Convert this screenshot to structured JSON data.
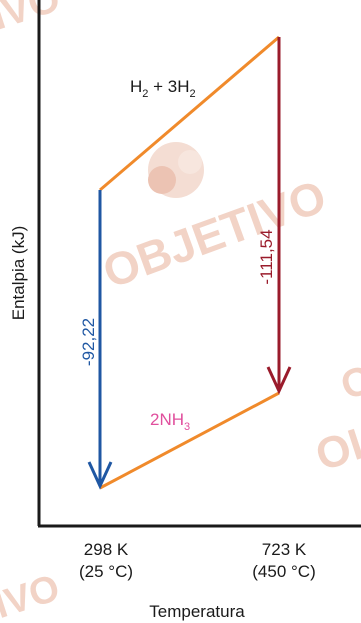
{
  "watermark": {
    "text_main": "OBJETIVO",
    "text_top_left": "IVO",
    "text_bottom_left": "IVO",
    "text_right_mid": "O",
    "text_right_low": "OI"
  },
  "axes": {
    "ylabel": "Entalpia (kJ)",
    "xlabel": "Temperatura",
    "ticks": [
      {
        "line1": "298 K",
        "line2": "(25 °C)"
      },
      {
        "line1": "723 K",
        "line2": "(450 °C)"
      }
    ]
  },
  "labels": {
    "reactants": {
      "pre": "H",
      "sub1": "2",
      "mid": " + 3H",
      "sub2": "2"
    },
    "product": {
      "pre": "2NH",
      "sub": "3"
    },
    "delta_298": "-92,22",
    "delta_723": "-111,54"
  },
  "colors": {
    "path": "#f08a2b",
    "arrow_298": "#1f57a3",
    "arrow_723": "#9a1b2b",
    "product_label": "#e04f9d",
    "axes": "#1a1a1a"
  }
}
